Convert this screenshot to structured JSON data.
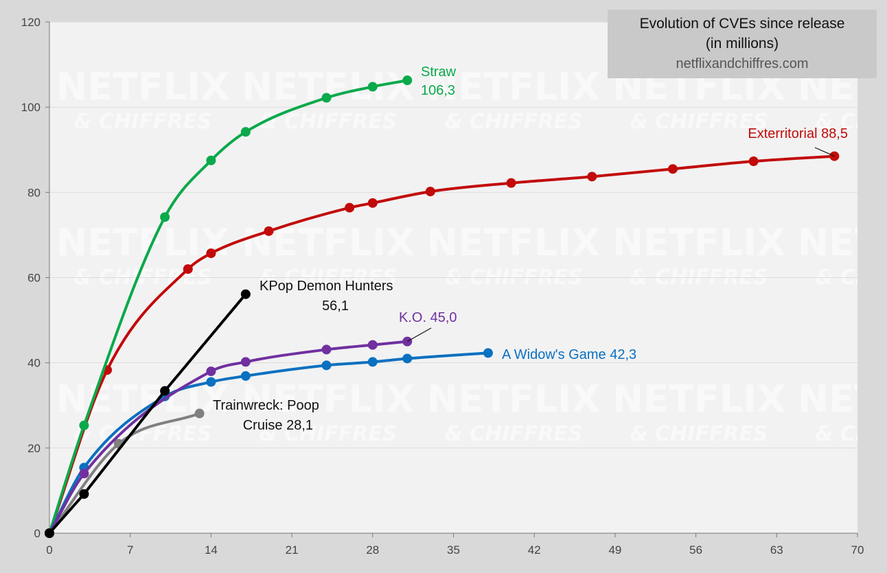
{
  "chart_data": {
    "type": "line",
    "title": "Evolution of CVEs since release",
    "subtitle": "(in millions)",
    "source": "netflixandchiffres.com",
    "watermark": [
      "NETFLIX",
      "& CHIFFRES"
    ],
    "xlabel": "",
    "ylabel": "",
    "xlim": [
      0,
      70
    ],
    "ylim": [
      0,
      120
    ],
    "x_ticks": [
      0,
      7,
      14,
      21,
      28,
      35,
      42,
      49,
      56,
      63,
      70
    ],
    "y_ticks": [
      0,
      20,
      40,
      60,
      80,
      100,
      120
    ],
    "grid": "horizontal",
    "series": [
      {
        "name": "Straw",
        "value_label": "106,3",
        "color": "#0ba94b",
        "x": [
          0,
          3,
          10,
          14,
          17,
          24,
          28,
          31
        ],
        "y": [
          0,
          25.3,
          74.2,
          87.5,
          94.2,
          102.2,
          104.8,
          106.3
        ]
      },
      {
        "name": "Exterritorial",
        "value_label": "88,5",
        "color": "#c20a0a",
        "x": [
          0,
          5,
          12,
          14,
          19,
          26,
          28,
          33,
          40,
          47,
          54,
          61,
          68
        ],
        "y": [
          0,
          38.3,
          62.0,
          65.7,
          70.9,
          76.4,
          77.5,
          80.2,
          82.2,
          83.7,
          85.5,
          87.3,
          88.5
        ]
      },
      {
        "name": "KPop Demon Hunters",
        "value_label": "56,1",
        "color": "#000000",
        "x": [
          0,
          3,
          10,
          17
        ],
        "y": [
          0,
          9.2,
          33.4,
          56.1
        ]
      },
      {
        "name": "K.O.",
        "value_label": "45,0",
        "color": "#7030a0",
        "x": [
          0,
          3,
          14,
          17,
          24,
          28,
          31
        ],
        "y": [
          0,
          14.0,
          38.0,
          40.2,
          43.1,
          44.2,
          45.0
        ]
      },
      {
        "name": "A Widow's Game",
        "value_label": "42,3",
        "color": "#0a70c0",
        "x": [
          0,
          3,
          10,
          14,
          17,
          24,
          28,
          31,
          38
        ],
        "y": [
          0,
          15.4,
          32.1,
          35.5,
          36.9,
          39.4,
          40.2,
          41.0,
          42.3
        ]
      },
      {
        "name": "Trainwreck: Poop Cruise",
        "value_label": "28,1",
        "color": "#808080",
        "x": [
          0,
          6,
          13
        ],
        "y": [
          0,
          21.0,
          28.1
        ]
      }
    ],
    "labels": [
      {
        "lines": [
          "Straw",
          "106,3"
        ],
        "color": "#0ba94b"
      },
      {
        "lines": [
          "Exterritorial 88,5"
        ],
        "color": "#c20a0a"
      },
      {
        "lines": [
          "KPop Demon Hunters",
          "56,1"
        ],
        "color": "#111111"
      },
      {
        "lines": [
          "K.O. 45,0"
        ],
        "color": "#7030a0"
      },
      {
        "lines": [
          "A Widow's Game 42,3"
        ],
        "color": "#0a70c0"
      },
      {
        "lines": [
          "Trainwreck: Poop",
          "Cruise 28,1"
        ],
        "color": "#111111"
      }
    ]
  }
}
